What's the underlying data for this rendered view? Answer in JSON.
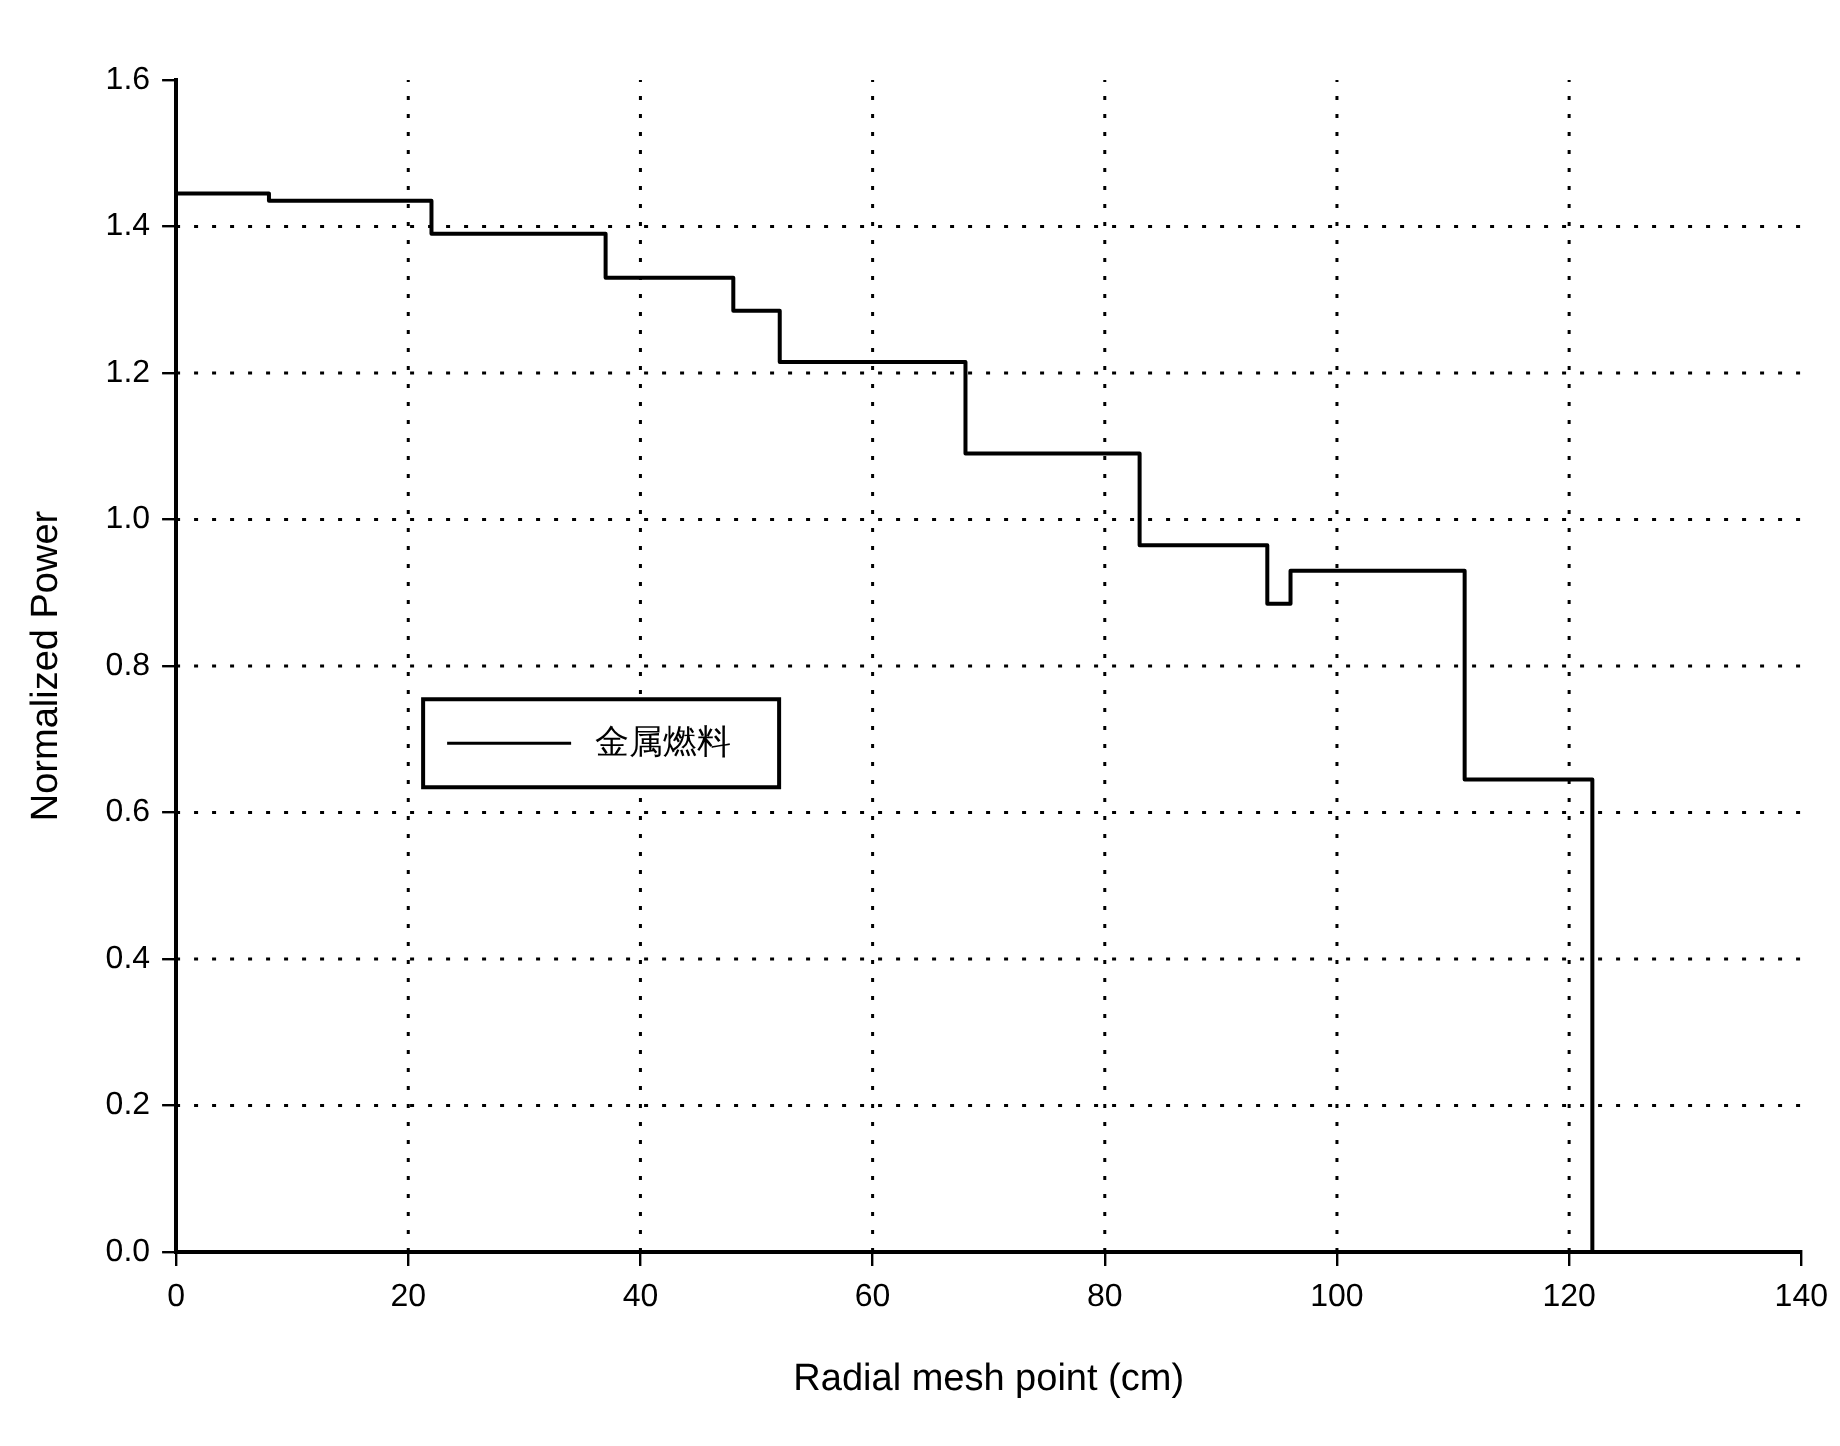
{
  "chart_data": {
    "type": "step",
    "xlabel": "Radial mesh point (cm)",
    "ylabel": "Normalized Power",
    "x": [
      0,
      8,
      22,
      37,
      48,
      52,
      68,
      83,
      94,
      96,
      111,
      122
    ],
    "series": [
      {
        "name": "金属燃料",
        "color": "#000000",
        "values": [
          1.445,
          1.435,
          1.39,
          1.33,
          1.285,
          1.215,
          1.09,
          0.965,
          0.885,
          0.93,
          0.645,
          0
        ]
      }
    ],
    "xlim": [
      0,
      140
    ],
    "xticks": [
      0,
      20,
      40,
      60,
      80,
      100,
      120,
      140
    ],
    "ylim": [
      0,
      1.6
    ],
    "yticks": [
      {
        "value": 0,
        "label": "0.0"
      },
      {
        "value": 0.2,
        "label": "0.2"
      },
      {
        "value": 0.4,
        "label": "0.4"
      },
      {
        "value": 0.6,
        "label": "0.6"
      },
      {
        "value": 0.8,
        "label": "0.8"
      },
      {
        "value": 1.0,
        "label": "1.0"
      },
      {
        "value": 1.2,
        "label": "1.2"
      },
      {
        "value": 1.4,
        "label": "1.4"
      },
      {
        "value": 1.6,
        "label": "1.6"
      }
    ],
    "grid": true,
    "legend": "center left",
    "line_style": "solid",
    "marker": "none"
  }
}
